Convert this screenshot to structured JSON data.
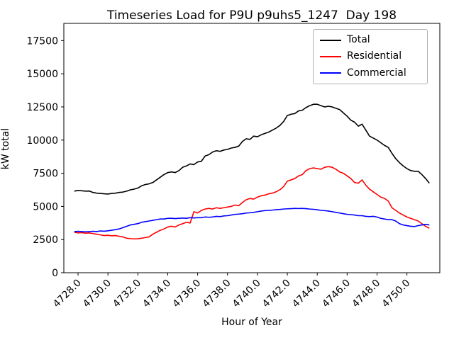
{
  "figure": {
    "background": "#ffffff"
  },
  "chart_data": {
    "type": "line",
    "title": "Timeseries Load for P9U p9uhs5_1247  Day 198",
    "xlabel": "Hour of Year",
    "ylabel": "kW total",
    "xlim": [
      4727.05,
      4752.2
    ],
    "ylim": [
      0,
      18800
    ],
    "grid": false,
    "x_ticks": [
      4728,
      4730,
      4732,
      4734,
      4736,
      4738,
      4740,
      4742,
      4744,
      4746,
      4748,
      4750
    ],
    "x_tick_labels": [
      "4728.0",
      "4730.0",
      "4732.0",
      "4734.0",
      "4736.0",
      "4738.0",
      "4740.0",
      "4742.0",
      "4744.0",
      "4746.0",
      "4748.0",
      "4750.0"
    ],
    "y_ticks": [
      0,
      2500,
      5000,
      7500,
      10000,
      12500,
      15000,
      17500
    ],
    "y_tick_labels": [
      "0",
      "2500",
      "5000",
      "7500",
      "10000",
      "12500",
      "15000",
      "17500"
    ],
    "x_start": 4727.75,
    "x_step": 0.25,
    "legend": {
      "position": "upper right",
      "entries": [
        {
          "label": "Total",
          "color": "#000000"
        },
        {
          "label": "Residential",
          "color": "#ff0000"
        },
        {
          "label": "Commercial",
          "color": "#0000ff"
        }
      ]
    },
    "series": [
      {
        "name": "Total",
        "color": "#000000",
        "values": [
          6150,
          6200,
          6180,
          6150,
          6160,
          6050,
          6000,
          5980,
          5950,
          5930,
          5980,
          6000,
          6050,
          6080,
          6150,
          6250,
          6300,
          6380,
          6550,
          6650,
          6700,
          6800,
          7000,
          7200,
          7400,
          7550,
          7600,
          7550,
          7700,
          7950,
          8050,
          8200,
          8150,
          8350,
          8400,
          8800,
          8900,
          9100,
          9200,
          9150,
          9250,
          9300,
          9400,
          9450,
          9550,
          9900,
          10100,
          10050,
          10300,
          10250,
          10400,
          10500,
          10600,
          10750,
          10900,
          11100,
          11400,
          11850,
          11950,
          12000,
          12200,
          12250,
          12450,
          12600,
          12700,
          12700,
          12600,
          12500,
          12550,
          12500,
          12400,
          12300,
          12050,
          11800,
          11500,
          11350,
          11050,
          11200,
          10750,
          10300,
          10150,
          10000,
          9800,
          9600,
          9450,
          9000,
          8600,
          8300,
          8050,
          7850,
          7700,
          7650,
          7650,
          7400,
          7100,
          6750
        ]
      },
      {
        "name": "Residential",
        "color": "#ff0000",
        "values": [
          3050,
          3000,
          3020,
          2980,
          3000,
          2950,
          2900,
          2850,
          2800,
          2820,
          2780,
          2800,
          2750,
          2700,
          2600,
          2570,
          2550,
          2560,
          2600,
          2650,
          2700,
          2900,
          3050,
          3200,
          3300,
          3450,
          3500,
          3450,
          3600,
          3700,
          3800,
          3750,
          4600,
          4500,
          4700,
          4800,
          4850,
          4800,
          4900,
          4850,
          4900,
          4950,
          5000,
          5100,
          5050,
          5300,
          5500,
          5600,
          5550,
          5700,
          5800,
          5850,
          5950,
          6000,
          6100,
          6250,
          6500,
          6900,
          7000,
          7100,
          7300,
          7400,
          7700,
          7850,
          7900,
          7850,
          7800,
          7950,
          8000,
          7950,
          7800,
          7600,
          7500,
          7300,
          7100,
          6800,
          6750,
          7000,
          6600,
          6300,
          6100,
          5900,
          5700,
          5600,
          5400,
          4900,
          4700,
          4500,
          4350,
          4200,
          4100,
          4000,
          3900,
          3700,
          3500,
          3350
        ]
      },
      {
        "name": "Commercial",
        "color": "#0000ff",
        "values": [
          3100,
          3120,
          3100,
          3080,
          3100,
          3120,
          3100,
          3150,
          3130,
          3160,
          3200,
          3250,
          3300,
          3400,
          3500,
          3600,
          3650,
          3700,
          3800,
          3850,
          3900,
          3950,
          4000,
          4050,
          4050,
          4100,
          4100,
          4080,
          4100,
          4120,
          4100,
          4150,
          4130,
          4150,
          4150,
          4200,
          4180,
          4200,
          4250,
          4230,
          4280,
          4300,
          4350,
          4400,
          4420,
          4450,
          4500,
          4520,
          4550,
          4600,
          4650,
          4680,
          4700,
          4720,
          4750,
          4770,
          4800,
          4820,
          4830,
          4850,
          4840,
          4850,
          4830,
          4800,
          4780,
          4750,
          4700,
          4680,
          4650,
          4600,
          4550,
          4500,
          4450,
          4400,
          4380,
          4350,
          4300,
          4300,
          4250,
          4230,
          4250,
          4200,
          4100,
          4050,
          4000,
          4000,
          3900,
          3700,
          3600,
          3550,
          3500,
          3480,
          3550,
          3600,
          3650,
          3600
        ]
      }
    ]
  }
}
